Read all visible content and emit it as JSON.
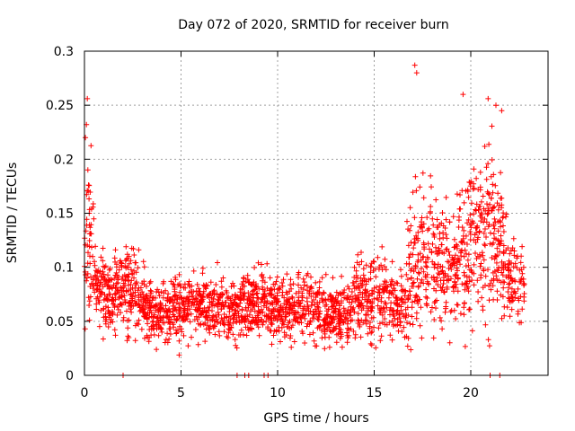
{
  "chart_data": {
    "type": "scatter",
    "title": "Day 072 of 2020, SRMTID for receiver burn",
    "xlabel": "GPS time / hours",
    "ylabel": "SRMTID / TECUs",
    "xlim": [
      0,
      24
    ],
    "ylim": [
      0,
      0.3
    ],
    "grid": true,
    "marker": "+",
    "color": "#ff0000",
    "x_ticks": [
      0,
      5,
      10,
      15,
      20
    ],
    "x_tick_labels": [
      "0",
      "5",
      "10",
      "15",
      "20"
    ],
    "y_ticks": [
      0,
      0.05,
      0.1,
      0.15,
      0.2,
      0.25,
      0.3
    ],
    "y_tick_labels": [
      "0",
      "0.05",
      "0.1",
      "0.15",
      "0.2",
      "0.25",
      "0.3"
    ],
    "x_extent_hours": [
      0,
      22.8
    ],
    "zero_value_times": [
      2.0,
      7.9,
      8.3,
      8.5,
      9.3,
      9.5,
      21.0,
      21.5
    ],
    "envelope": [
      {
        "x": 0.0,
        "mean": 0.12,
        "spread": 0.07
      },
      {
        "x": 0.3,
        "mean": 0.14,
        "spread": 0.07
      },
      {
        "x": 0.6,
        "mean": 0.085,
        "spread": 0.03
      },
      {
        "x": 1.5,
        "mean": 0.075,
        "spread": 0.03
      },
      {
        "x": 2.5,
        "mean": 0.08,
        "spread": 0.035
      },
      {
        "x": 3.5,
        "mean": 0.055,
        "spread": 0.025
      },
      {
        "x": 4.5,
        "mean": 0.058,
        "spread": 0.025
      },
      {
        "x": 5.5,
        "mean": 0.065,
        "spread": 0.027
      },
      {
        "x": 6.5,
        "mean": 0.065,
        "spread": 0.025
      },
      {
        "x": 7.5,
        "mean": 0.06,
        "spread": 0.025
      },
      {
        "x": 8.5,
        "mean": 0.065,
        "spread": 0.028
      },
      {
        "x": 9.5,
        "mean": 0.065,
        "spread": 0.025
      },
      {
        "x": 10.5,
        "mean": 0.06,
        "spread": 0.025
      },
      {
        "x": 11.5,
        "mean": 0.065,
        "spread": 0.027
      },
      {
        "x": 12.5,
        "mean": 0.055,
        "spread": 0.025
      },
      {
        "x": 13.5,
        "mean": 0.055,
        "spread": 0.025
      },
      {
        "x": 14.5,
        "mean": 0.075,
        "spread": 0.035
      },
      {
        "x": 15.5,
        "mean": 0.07,
        "spread": 0.03
      },
      {
        "x": 16.5,
        "mean": 0.06,
        "spread": 0.03
      },
      {
        "x": 17.0,
        "mean": 0.1,
        "spread": 0.06
      },
      {
        "x": 17.5,
        "mean": 0.12,
        "spread": 0.06
      },
      {
        "x": 18.5,
        "mean": 0.1,
        "spread": 0.05
      },
      {
        "x": 19.5,
        "mean": 0.11,
        "spread": 0.06
      },
      {
        "x": 20.5,
        "mean": 0.13,
        "spread": 0.07
      },
      {
        "x": 21.5,
        "mean": 0.13,
        "spread": 0.07
      },
      {
        "x": 22.0,
        "mean": 0.09,
        "spread": 0.03
      },
      {
        "x": 22.8,
        "mean": 0.085,
        "spread": 0.03
      }
    ],
    "outliers": [
      {
        "x": 17.1,
        "y": 0.287
      },
      {
        "x": 17.2,
        "y": 0.28
      },
      {
        "x": 19.6,
        "y": 0.26
      },
      {
        "x": 20.9,
        "y": 0.256
      },
      {
        "x": 21.3,
        "y": 0.25
      },
      {
        "x": 21.6,
        "y": 0.245
      },
      {
        "x": 0.15,
        "y": 0.256
      },
      {
        "x": 0.1,
        "y": 0.232
      },
      {
        "x": 0.05,
        "y": 0.22
      }
    ],
    "point_count": 2400
  }
}
